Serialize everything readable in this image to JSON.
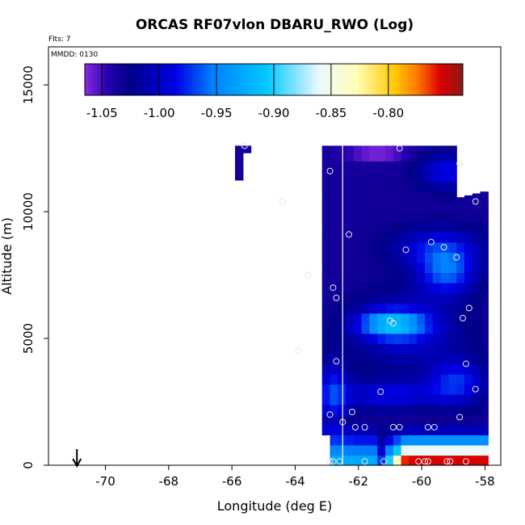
{
  "chart_data": {
    "type": "heatmap",
    "title": "ORCAS RF07vlon DBARU_RWO (Log)",
    "flights_label": "Flts: 7",
    "mmdd_label": "MMDD: 0130",
    "xlabel": "Longitude (deg E)",
    "ylabel": "Altitude (m)",
    "xlim": [
      -71.8,
      -57.5
    ],
    "ylim": [
      0,
      16500
    ],
    "xticks": [
      -70,
      -68,
      -66,
      -64,
      -62,
      -60,
      -58
    ],
    "xtick_labels": [
      "-70",
      "-68",
      "-66",
      "-64",
      "-62",
      "-60",
      "-58"
    ],
    "yticks": [
      0,
      5000,
      10000,
      15000
    ],
    "ytick_labels": [
      "0",
      "5000",
      "10000",
      "15000"
    ],
    "colorbar": {
      "range": [
        -1.065,
        -0.735
      ],
      "ticks": [
        -1.05,
        -1.0,
        -0.95,
        -0.9,
        -0.85,
        -0.8
      ],
      "tick_labels": [
        "-1.05",
        "-1.00",
        "-0.95",
        "-0.90",
        "-0.85",
        "-0.80"
      ],
      "colormap": "purple-blue-cyan-white-yellow-orange-red"
    },
    "grid": {
      "lon_start": -65.9,
      "lon_step": 0.25,
      "alt_step": 400,
      "n_lon": 32,
      "n_alt": 32
    },
    "vertical_line_lon": -62.5,
    "arrow_lon": -70.9,
    "sample_points": [
      {
        "lon": -65.6,
        "alt": 12600
      },
      {
        "lon": -60.7,
        "alt": 12500
      },
      {
        "lon": -58.8,
        "alt": 11900
      },
      {
        "lon": -62.9,
        "alt": 11600
      },
      {
        "lon": -64.4,
        "alt": 10400
      },
      {
        "lon": -58.3,
        "alt": 10400
      },
      {
        "lon": -62.3,
        "alt": 9100
      },
      {
        "lon": -59.7,
        "alt": 8800
      },
      {
        "lon": -59.3,
        "alt": 8600
      },
      {
        "lon": -60.5,
        "alt": 8500
      },
      {
        "lon": -58.9,
        "alt": 8200
      },
      {
        "lon": -63.6,
        "alt": 7500
      },
      {
        "lon": -62.8,
        "alt": 7000
      },
      {
        "lon": -62.7,
        "alt": 6600
      },
      {
        "lon": -58.5,
        "alt": 6200
      },
      {
        "lon": -58.7,
        "alt": 5800
      },
      {
        "lon": -61.0,
        "alt": 5700
      },
      {
        "lon": -60.9,
        "alt": 5600
      },
      {
        "lon": -63.9,
        "alt": 4500
      },
      {
        "lon": -62.7,
        "alt": 4100
      },
      {
        "lon": -58.6,
        "alt": 4000
      },
      {
        "lon": -58.3,
        "alt": 3000
      },
      {
        "lon": -61.3,
        "alt": 2900
      },
      {
        "lon": -62.2,
        "alt": 2100
      },
      {
        "lon": -62.9,
        "alt": 2000
      },
      {
        "lon": -58.8,
        "alt": 1900
      },
      {
        "lon": -62.5,
        "alt": 1700
      },
      {
        "lon": -62.1,
        "alt": 1500
      },
      {
        "lon": -61.8,
        "alt": 1500
      },
      {
        "lon": -60.9,
        "alt": 1500
      },
      {
        "lon": -60.7,
        "alt": 1500
      },
      {
        "lon": -59.8,
        "alt": 1500
      },
      {
        "lon": -59.6,
        "alt": 1500
      },
      {
        "lon": -62.9,
        "alt": 150
      },
      {
        "lon": -62.8,
        "alt": 150
      },
      {
        "lon": -62.6,
        "alt": 150
      },
      {
        "lon": -61.8,
        "alt": 150
      },
      {
        "lon": -61.2,
        "alt": 150
      },
      {
        "lon": -60.1,
        "alt": 150
      },
      {
        "lon": -59.9,
        "alt": 150
      },
      {
        "lon": -59.8,
        "alt": 150
      },
      {
        "lon": -59.2,
        "alt": 150
      },
      {
        "lon": -59.1,
        "alt": 150
      },
      {
        "lon": -58.6,
        "alt": 150
      }
    ],
    "colors": {
      "line": "#ffffff",
      "points": "#e8e8e8",
      "frame": "#000000"
    }
  }
}
